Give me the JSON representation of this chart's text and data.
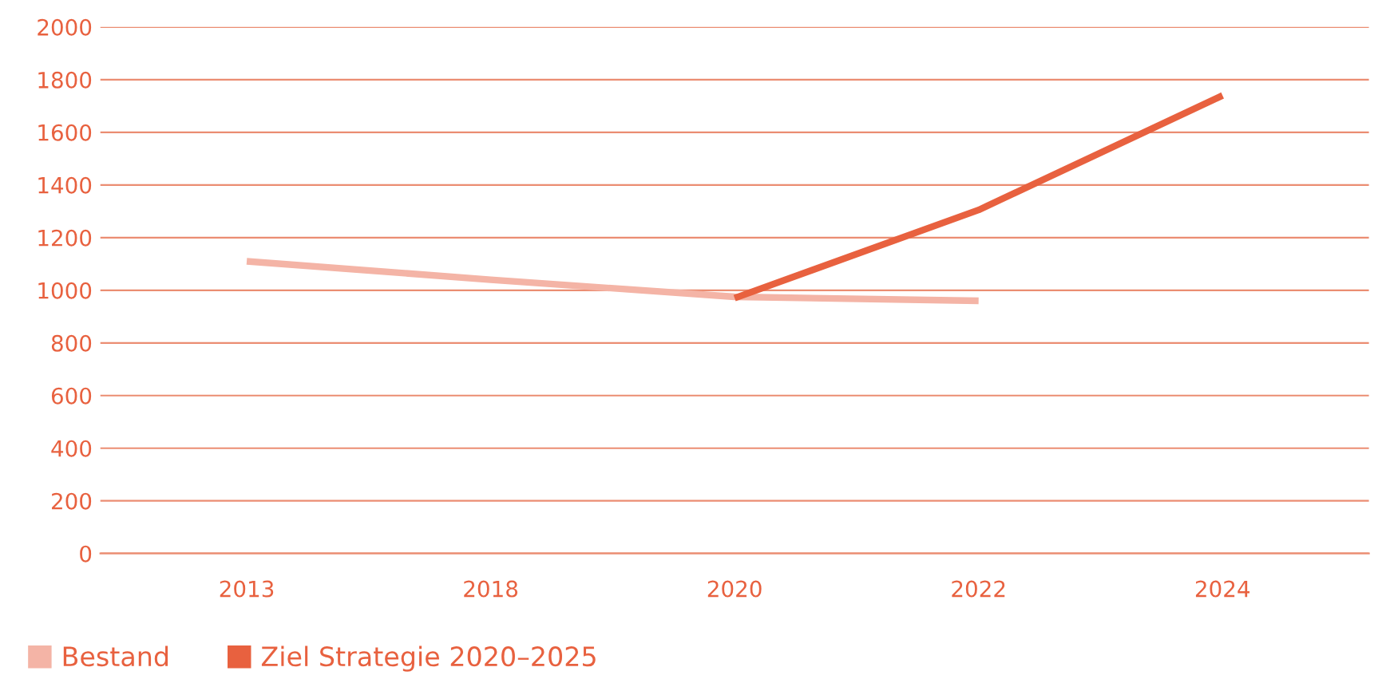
{
  "chart_data": {
    "type": "line",
    "categories": [
      "2013",
      "2018",
      "2020",
      "2022",
      "2024"
    ],
    "series": [
      {
        "name": "Bestand",
        "color": "#f4b4a6",
        "values": [
          1110,
          1040,
          975,
          960,
          null
        ]
      },
      {
        "name": "Ziel Strategie 2020–2025",
        "color": "#e8613f",
        "values": [
          null,
          null,
          970,
          1305,
          1740
        ]
      }
    ],
    "ylim": [
      0,
      2000
    ],
    "yticks": [
      0,
      200,
      400,
      600,
      800,
      1000,
      1200,
      1400,
      1600,
      1800,
      2000
    ],
    "grid": "y",
    "legend": "bottom left",
    "marker": "none",
    "line_style": "solid"
  }
}
